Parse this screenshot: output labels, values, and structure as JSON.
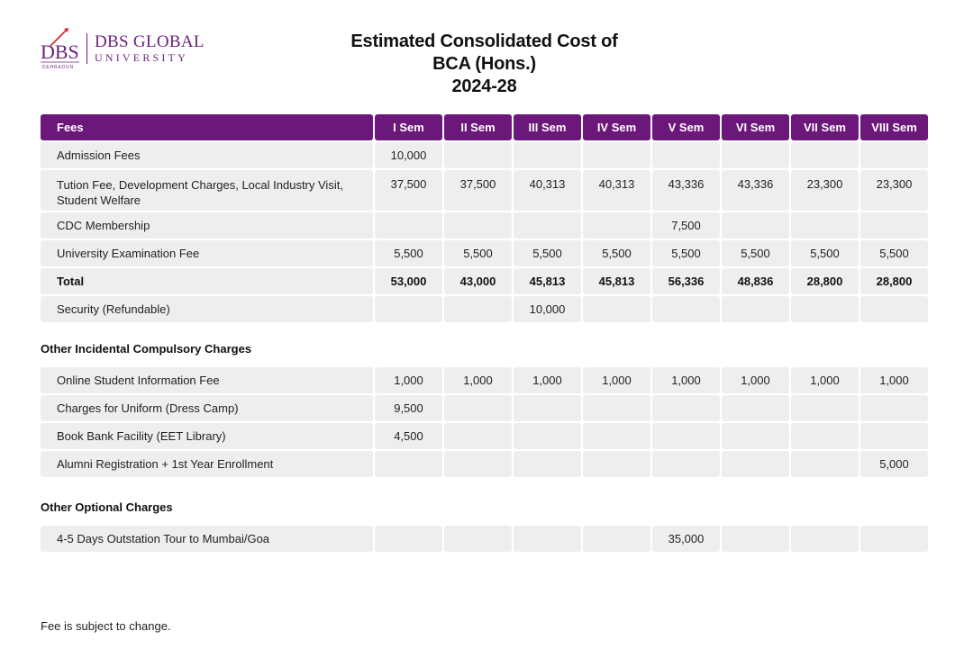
{
  "logo": {
    "mark_text": "DBS",
    "mark_subtext": "DEHRADUN",
    "line1": "DBS GLOBAL",
    "line2": "UNIVERSITY",
    "color": "#6b1f7a",
    "accent": "#d3232a"
  },
  "title": {
    "line1": "Estimated Consolidated Cost of",
    "line2": "BCA (Hons.)",
    "line3": "2024-28"
  },
  "header": [
    "Fees",
    "I Sem",
    "II Sem",
    "III Sem",
    "IV Sem",
    "V Sem",
    "VI Sem",
    "VII Sem",
    "VIII Sem"
  ],
  "main_rows": [
    {
      "label": "Admission Fees",
      "values": [
        "10,000",
        "",
        "",
        "",
        "",
        "",
        "",
        ""
      ]
    },
    {
      "label": "Tution Fee, Development Charges, Local Industry Visit, Student Welfare",
      "values": [
        "37,500",
        "37,500",
        "40,313",
        "40,313",
        "43,336",
        "43,336",
        "23,300",
        "23,300"
      ]
    },
    {
      "label": "CDC Membership",
      "values": [
        "",
        "",
        "",
        "",
        "7,500",
        "",
        "",
        ""
      ]
    },
    {
      "label": "University Examination Fee",
      "values": [
        "5,500",
        "5,500",
        "5,500",
        "5,500",
        "5,500",
        "5,500",
        "5,500",
        "5,500"
      ]
    },
    {
      "label": "Total",
      "values": [
        "53,000",
        "43,000",
        "45,813",
        "45,813",
        "56,336",
        "48,836",
        "28,800",
        "28,800"
      ]
    },
    {
      "label": "Security (Refundable)",
      "values": [
        "",
        "",
        "10,000",
        "",
        "",
        "",
        "",
        ""
      ]
    }
  ],
  "incidental": {
    "title": "Other Incidental Compulsory Charges",
    "rows": [
      {
        "label": "Online Student Information Fee",
        "values": [
          "1,000",
          "1,000",
          "1,000",
          "1,000",
          "1,000",
          "1,000",
          "1,000",
          "1,000"
        ]
      },
      {
        "label": "Charges for Uniform (Dress Camp)",
        "values": [
          "9,500",
          "",
          "",
          "",
          "",
          "",
          "",
          ""
        ]
      },
      {
        "label": "Book Bank Facility (EET Library)",
        "values": [
          "4,500",
          "",
          "",
          "",
          "",
          "",
          "",
          ""
        ]
      },
      {
        "label": "Alumni Registration + 1st Year Enrollment",
        "values": [
          "",
          "",
          "",
          "",
          "",
          "",
          "",
          "5,000"
        ]
      }
    ]
  },
  "optional": {
    "title": "Other Optional Charges",
    "rows": [
      {
        "label": "4-5 Days Outstation Tour to Mumbai/Goa",
        "values": [
          "",
          "",
          "",
          "",
          "35,000",
          "",
          "",
          ""
        ]
      }
    ]
  },
  "footnote": "Fee is subject to change."
}
